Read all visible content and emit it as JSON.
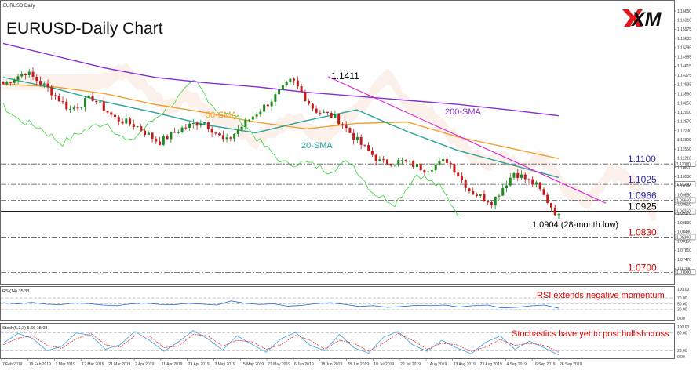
{
  "header": {
    "symbol": "EURUSD,Daily",
    "title": "EURUSD-Daily Chart",
    "logo_text": "XM"
  },
  "chart_data": [
    {
      "type": "candlestick",
      "title": "EURUSD-Daily Chart",
      "ylim": [
        1.0675,
        1.1665
      ],
      "y_ticks": [
        "1.16650",
        "1.16310",
        "1.15975",
        "1.15635",
        "1.15295",
        "1.14955",
        "1.14615",
        "1.14275",
        "1.13935",
        "1.13590",
        "1.13250",
        "1.12910",
        "1.12570",
        "1.12230",
        "1.11890",
        "1.11550",
        "1.11210",
        "1.10870",
        "1.10530",
        "1.10190",
        "1.09850",
        "1.09510",
        "1.09170",
        "1.08830",
        "1.08490",
        "1.08150",
        "1.07810",
        "1.07470",
        "1.07130"
      ],
      "x_ticks": [
        "7 Feb 2019",
        "19 Feb 2019",
        "1 Mar 2019",
        "12 Mar 2019",
        "21 Mar 2019",
        "2 Apr 2019",
        "11 Apr 2019",
        "23 Apr 2019",
        "3 May 2019",
        "15 May 2019",
        "27 May 2019",
        "6 Jun 2019",
        "18 Jun 2019",
        "28 Jun 2019",
        "10 Jul 2019",
        "22 Jul 2019",
        "1 Aug 2019",
        "13 Aug 2019",
        "23 Aug 2019",
        "4 Sep 2019",
        "16 Sep 2019",
        "26 Sep 2019"
      ],
      "grid": false,
      "levels": [
        {
          "label": "1.1100",
          "value": 1.11,
          "price_tag": "1.11000",
          "color": "#2d2db4",
          "style": "dashdot"
        },
        {
          "label": "1.1025",
          "value": 1.1025,
          "price_tag": "1.10250",
          "color": "#2d2db4",
          "style": "dashdot"
        },
        {
          "label": "1.0966",
          "value": 1.0966,
          "price_tag": "1.09660",
          "color": "#2d2db4",
          "style": "dashdot"
        },
        {
          "label": "1.0925",
          "value": 1.0925,
          "price_tag": "1.09250",
          "color": "#000000",
          "style": "solid"
        },
        {
          "label": "1.0830",
          "value": 1.083,
          "price_tag": "1.08300",
          "color": "#e00000",
          "style": "dashdot"
        },
        {
          "label": "1.0700",
          "value": 1.07,
          "price_tag": "1.07000",
          "color": "#e00000",
          "style": "dashdot"
        }
      ],
      "annotations": [
        {
          "text": "1.1411",
          "color": "#000000"
        },
        {
          "text": "1.0904 (28-month low)",
          "color": "#000000"
        },
        {
          "text": "200-SMA",
          "color": "#8a2bd6"
        },
        {
          "text": "50-SMA",
          "color": "#f0a030"
        },
        {
          "text": "20-SMA",
          "color": "#2aa39a"
        }
      ],
      "series": [
        {
          "name": "200-SMA",
          "color": "#8a2bd6",
          "values": [
            1.1545,
            1.15,
            1.1455,
            1.142,
            1.14,
            1.1385,
            1.1365,
            1.135,
            1.1335,
            1.132,
            1.13,
            1.1278
          ]
        },
        {
          "name": "50-SMA",
          "color": "#f0a030",
          "values": [
            1.1395,
            1.1385,
            1.136,
            1.132,
            1.129,
            1.1255,
            1.123,
            1.125,
            1.1255,
            1.12,
            1.116,
            1.112
          ]
        },
        {
          "name": "20-SMA",
          "color": "#2aa39a",
          "values": [
            1.142,
            1.138,
            1.133,
            1.129,
            1.1245,
            1.1215,
            1.126,
            1.13,
            1.122,
            1.115,
            1.11,
            1.105
          ]
        }
      ],
      "trendline": {
        "from": 1.1411,
        "to": 1.1,
        "color": "#e020d8"
      },
      "price_path": [
        1.1395,
        1.144,
        1.138,
        1.13,
        1.1345,
        1.127,
        1.124,
        1.118,
        1.123,
        1.126,
        1.118,
        1.126,
        1.133,
        1.1411,
        1.13,
        1.127,
        1.118,
        1.1105,
        1.111,
        1.108,
        1.1115,
        1.1,
        1.096,
        1.107,
        1.102,
        1.0904
      ]
    },
    {
      "type": "line",
      "title": "RSI(14) 35.33",
      "ylim": [
        0,
        100
      ],
      "y_ticks": [
        "100.00",
        "70.00",
        "50.00",
        "30.00",
        "0.00"
      ],
      "annotation": "RSI extends negative momentum",
      "series": [
        {
          "name": "RSI(14)",
          "color": "#1f66e5",
          "values": [
            54,
            50,
            55,
            49,
            47,
            53,
            51,
            46,
            44,
            50,
            53,
            48,
            47,
            52,
            49,
            46,
            60,
            52,
            48,
            50,
            42,
            45,
            51,
            54,
            48,
            41,
            44,
            38,
            41,
            45,
            44,
            46,
            39,
            44,
            46,
            36,
            38,
            43,
            46,
            35
          ]
        }
      ]
    },
    {
      "type": "line",
      "title": "Stoch(5,3,3) 5.66 15.08",
      "ylim": [
        0,
        100
      ],
      "y_ticks": [
        "100.00",
        "80.00",
        "20.00",
        "0.00"
      ],
      "annotation": "Stochastics have yet to post bullish cross",
      "series": [
        {
          "name": "%K",
          "color": "#3aa0e8",
          "values": [
            45,
            78,
            62,
            20,
            35,
            80,
            72,
            25,
            40,
            85,
            55,
            18,
            50,
            88,
            60,
            22,
            70,
            42,
            15,
            60,
            82,
            38,
            20,
            75,
            30,
            12,
            65,
            85,
            40,
            18,
            55,
            30,
            10,
            48,
            70,
            25,
            52,
            30,
            6
          ]
        },
        {
          "name": "%D",
          "color": "#e03030",
          "values": [
            40,
            62,
            70,
            38,
            28,
            60,
            78,
            40,
            32,
            70,
            70,
            30,
            36,
            75,
            70,
            35,
            55,
            50,
            25,
            40,
            72,
            55,
            25,
            55,
            45,
            18,
            45,
            78,
            55,
            25,
            45,
            40,
            18,
            32,
            58,
            38,
            45,
            38,
            15
          ]
        }
      ]
    }
  ]
}
